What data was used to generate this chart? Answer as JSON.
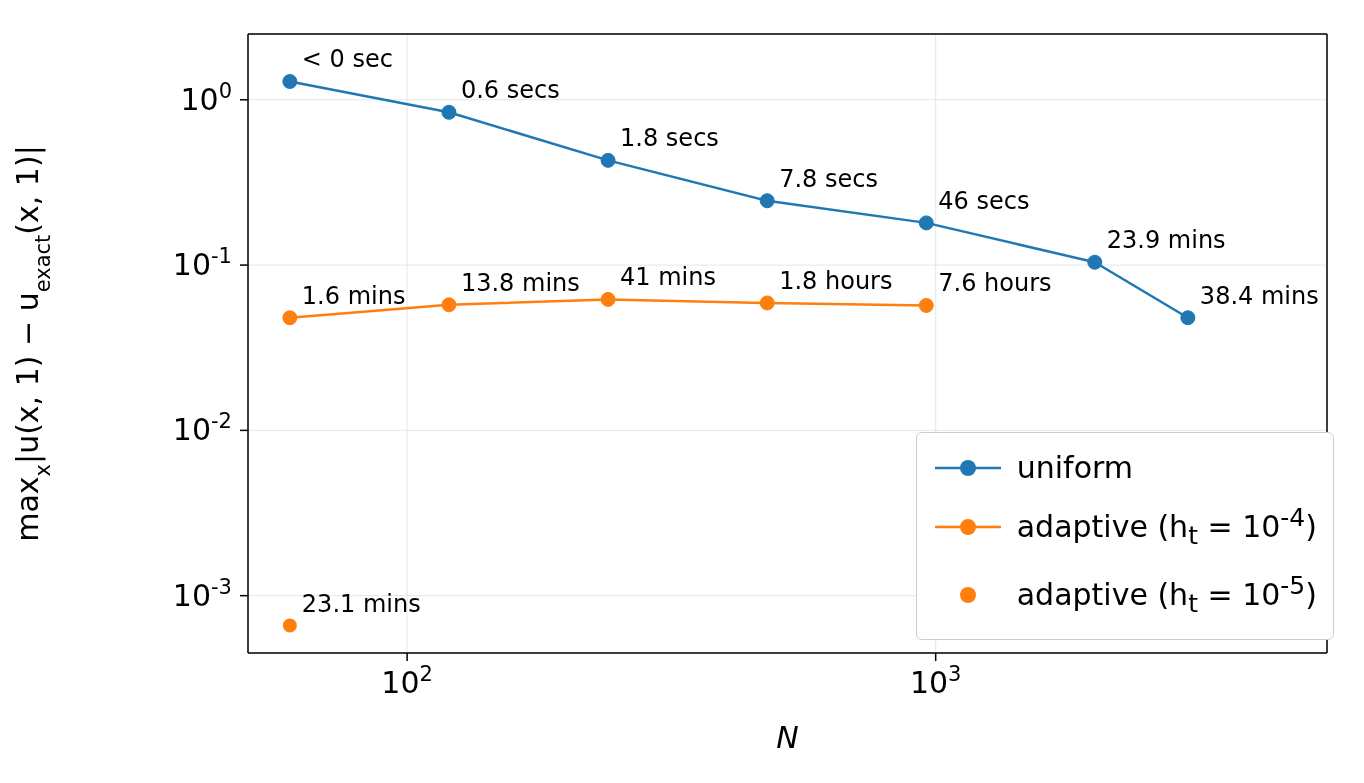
{
  "chart_data": {
    "type": "line",
    "xlabel": "N",
    "ylabel": "max$_{x}$|u(x, 1) − u$_{exact}$(x, 1)|",
    "log": "xy",
    "grid": true,
    "legend": "bottom right",
    "marker": "circle",
    "line_style": "solid",
    "xlim": [
      50,
      5500
    ],
    "xticks": [
      {
        "value": 100,
        "label": "10$^{2}$"
      },
      {
        "value": 1000,
        "label": "10$^{3}$"
      }
    ],
    "ylim": [
      0.00045,
      2.5
    ],
    "yticks": [
      {
        "value": 1,
        "label": "10$^{0}$"
      },
      {
        "value": 0.1,
        "label": "10$^{-1}$"
      },
      {
        "value": 0.01,
        "label": "10$^{-2}$"
      },
      {
        "value": 0.001,
        "label": "10$^{-3}$"
      }
    ],
    "series": [
      {
        "name": "uniform",
        "color": "#1f77b4",
        "x": [
          60,
          120,
          240,
          480,
          960,
          2000,
          3000
        ],
        "values": [
          1.29,
          0.84,
          0.43,
          0.245,
          0.18,
          0.104,
          0.048
        ]
      },
      {
        "name": "adaptive (h$_{t}$ = 10$^{-4}$)",
        "color": "#ff7f0e",
        "x": [
          60,
          120,
          240,
          480,
          960
        ],
        "values": [
          0.048,
          0.0575,
          0.062,
          0.059,
          0.057
        ]
      },
      {
        "name": "adaptive (h$_{t}$ = 10$^{-5}$)",
        "type": "scatter",
        "color": "#ff7f0e",
        "x": [
          60
        ],
        "values": [
          0.00066
        ]
      }
    ],
    "annotations": [
      {
        "text": "< 0 sec",
        "x": 60,
        "y": 1.29
      },
      {
        "text": "0.6 secs",
        "x": 120,
        "y": 0.84
      },
      {
        "text": "1.8 secs",
        "x": 240,
        "y": 0.43
      },
      {
        "text": "7.8 secs",
        "x": 480,
        "y": 0.245
      },
      {
        "text": "46 secs",
        "x": 960,
        "y": 0.18
      },
      {
        "text": "23.9 mins",
        "x": 2000,
        "y": 0.104
      },
      {
        "text": "38.4 mins",
        "x": 3000,
        "y": 0.048
      },
      {
        "text": "1.6 mins",
        "x": 60,
        "y": 0.048
      },
      {
        "text": "13.8 mins",
        "x": 120,
        "y": 0.0575
      },
      {
        "text": "41 mins",
        "x": 240,
        "y": 0.062
      },
      {
        "text": "1.8 hours",
        "x": 480,
        "y": 0.059
      },
      {
        "text": "7.6 hours",
        "x": 960,
        "y": 0.057
      },
      {
        "text": "23.1 mins",
        "x": 60,
        "y": 0.00066
      }
    ]
  }
}
